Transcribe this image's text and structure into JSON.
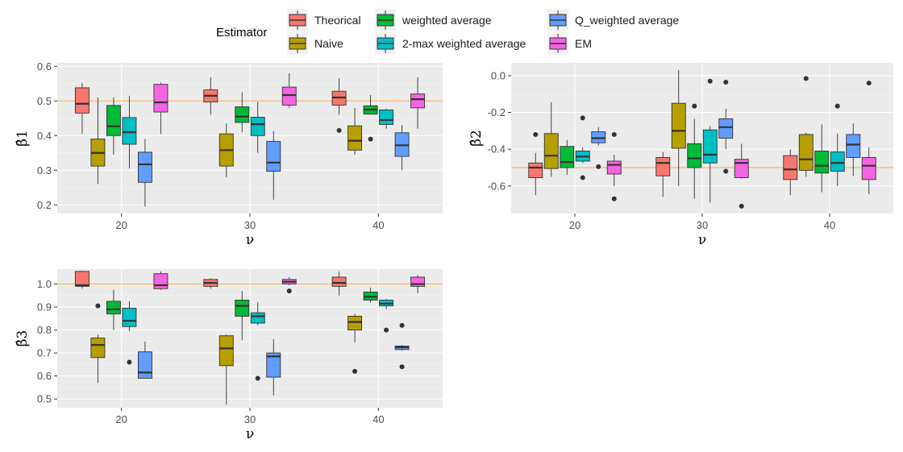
{
  "legend": {
    "title": "Estimator",
    "items": [
      {
        "label": "Theorical",
        "color": "#F8766D"
      },
      {
        "label": "Naive",
        "color": "#B79F00"
      },
      {
        "label": "weighted average",
        "color": "#00BA38"
      },
      {
        "label": "2-max weighted average",
        "color": "#00BFC4"
      },
      {
        "label": "Q_weighted average",
        "color": "#619CFF"
      },
      {
        "label": "EM",
        "color": "#F564E3"
      }
    ]
  },
  "reference_line_color": "#F5B041",
  "chart_data": [
    {
      "type": "box",
      "id": "beta1",
      "ylabel": "β̂1",
      "xlabel": "ν",
      "categories": [
        "20",
        "30",
        "40"
      ],
      "ylim": [
        0.175,
        0.61
      ],
      "yticks": [
        0.2,
        0.3,
        0.4,
        0.5,
        0.6
      ],
      "reference_y": 0.5,
      "groups": [
        {
          "category": "20",
          "boxes": [
            {
              "series": "Theorical",
              "whislo": 0.405,
              "q1": 0.465,
              "med": 0.492,
              "q3": 0.538,
              "whishi": 0.552,
              "outliers": []
            },
            {
              "series": "Naive",
              "whislo": 0.26,
              "q1": 0.312,
              "med": 0.35,
              "q3": 0.39,
              "whishi": 0.51,
              "outliers": []
            },
            {
              "series": "weighted average",
              "whislo": 0.345,
              "q1": 0.4,
              "med": 0.427,
              "q3": 0.487,
              "whishi": 0.51,
              "outliers": []
            },
            {
              "series": "2-max weighted average",
              "whislo": 0.305,
              "q1": 0.375,
              "med": 0.41,
              "q3": 0.452,
              "whishi": 0.515,
              "outliers": []
            },
            {
              "series": "Q_weighted average",
              "whislo": 0.195,
              "q1": 0.265,
              "med": 0.317,
              "q3": 0.352,
              "whishi": 0.39,
              "outliers": []
            },
            {
              "series": "EM",
              "whislo": 0.405,
              "q1": 0.468,
              "med": 0.496,
              "q3": 0.548,
              "whishi": 0.553,
              "outliers": []
            }
          ]
        },
        {
          "category": "30",
          "boxes": [
            {
              "series": "Theorical",
              "whislo": 0.46,
              "q1": 0.497,
              "med": 0.515,
              "q3": 0.532,
              "whishi": 0.568,
              "outliers": []
            },
            {
              "series": "Naive",
              "whislo": 0.28,
              "q1": 0.312,
              "med": 0.358,
              "q3": 0.405,
              "whishi": 0.435,
              "outliers": []
            },
            {
              "series": "weighted average",
              "whislo": 0.41,
              "q1": 0.438,
              "med": 0.455,
              "q3": 0.483,
              "whishi": 0.525,
              "outliers": []
            },
            {
              "series": "2-max weighted average",
              "whislo": 0.35,
              "q1": 0.4,
              "med": 0.433,
              "q3": 0.453,
              "whishi": 0.497,
              "outliers": []
            },
            {
              "series": "Q_weighted average",
              "whislo": 0.215,
              "q1": 0.297,
              "med": 0.322,
              "q3": 0.383,
              "whishi": 0.413,
              "outliers": []
            },
            {
              "series": "EM",
              "whislo": 0.48,
              "q1": 0.488,
              "med": 0.517,
              "q3": 0.54,
              "whishi": 0.58,
              "outliers": []
            }
          ]
        },
        {
          "category": "40",
          "boxes": [
            {
              "series": "Theorical",
              "whislo": 0.46,
              "q1": 0.488,
              "med": 0.51,
              "q3": 0.528,
              "whishi": 0.565,
              "outliers": [
                0.415
              ]
            },
            {
              "series": "Naive",
              "whislo": 0.345,
              "q1": 0.358,
              "med": 0.385,
              "q3": 0.428,
              "whishi": 0.48,
              "outliers": []
            },
            {
              "series": "weighted average",
              "whislo": 0.46,
              "q1": 0.462,
              "med": 0.475,
              "q3": 0.486,
              "whishi": 0.517,
              "outliers": [
                0.39
              ]
            },
            {
              "series": "2-max weighted average",
              "whislo": 0.42,
              "q1": 0.432,
              "med": 0.445,
              "q3": 0.474,
              "whishi": 0.477,
              "outliers": []
            },
            {
              "series": "Q_weighted average",
              "whislo": 0.3,
              "q1": 0.34,
              "med": 0.372,
              "q3": 0.408,
              "whishi": 0.43,
              "outliers": []
            },
            {
              "series": "EM",
              "whislo": 0.42,
              "q1": 0.48,
              "med": 0.505,
              "q3": 0.52,
              "whishi": 0.568,
              "outliers": []
            }
          ]
        }
      ]
    },
    {
      "type": "box",
      "id": "beta2",
      "ylabel": "β̂2",
      "xlabel": "ν",
      "categories": [
        "20",
        "30",
        "40"
      ],
      "ylim": [
        -0.75,
        0.07
      ],
      "yticks": [
        0.0,
        -0.2,
        -0.4,
        -0.6
      ],
      "reference_y": -0.5,
      "groups": [
        {
          "category": "20",
          "boxes": [
            {
              "series": "Theorical",
              "whislo": -0.65,
              "q1": -0.555,
              "med": -0.5,
              "q3": -0.475,
              "whishi": -0.42,
              "outliers": [
                -0.32
              ]
            },
            {
              "series": "Naive",
              "whislo": -0.55,
              "q1": -0.505,
              "med": -0.435,
              "q3": -0.315,
              "whishi": -0.145,
              "outliers": []
            },
            {
              "series": "weighted average",
              "whislo": -0.54,
              "q1": -0.5,
              "med": -0.47,
              "q3": -0.385,
              "whishi": -0.35,
              "outliers": []
            },
            {
              "series": "2-max weighted average",
              "whislo": -0.475,
              "q1": -0.465,
              "med": -0.44,
              "q3": -0.41,
              "whishi": -0.39,
              "outliers": [
                -0.555,
                -0.23
              ]
            },
            {
              "series": "Q_weighted average",
              "whislo": -0.38,
              "q1": -0.365,
              "med": -0.34,
              "q3": -0.305,
              "whishi": -0.28,
              "outliers": [
                -0.495
              ]
            },
            {
              "series": "EM",
              "whislo": -0.6,
              "q1": -0.535,
              "med": -0.485,
              "q3": -0.465,
              "whishi": -0.43,
              "outliers": [
                -0.32,
                -0.67
              ]
            }
          ]
        },
        {
          "category": "30",
          "boxes": [
            {
              "series": "Theorical",
              "whislo": -0.66,
              "q1": -0.545,
              "med": -0.475,
              "q3": -0.445,
              "whishi": -0.415,
              "outliers": []
            },
            {
              "series": "Naive",
              "whislo": -0.6,
              "q1": -0.395,
              "med": -0.3,
              "q3": -0.15,
              "whishi": 0.03,
              "outliers": []
            },
            {
              "series": "weighted average",
              "whislo": -0.67,
              "q1": -0.5,
              "med": -0.45,
              "q3": -0.37,
              "whishi": -0.235,
              "outliers": [
                -0.165
              ]
            },
            {
              "series": "2-max weighted average",
              "whislo": -0.69,
              "q1": -0.475,
              "med": -0.43,
              "q3": -0.295,
              "whishi": -0.275,
              "outliers": [
                -0.03
              ]
            },
            {
              "series": "Q_weighted average",
              "whislo": -0.4,
              "q1": -0.34,
              "med": -0.28,
              "q3": -0.235,
              "whishi": -0.18,
              "outliers": [
                -0.035,
                -0.52
              ]
            },
            {
              "series": "EM",
              "whislo": -0.56,
              "q1": -0.555,
              "med": -0.475,
              "q3": -0.455,
              "whishi": -0.37,
              "outliers": [
                -0.71
              ]
            }
          ]
        },
        {
          "category": "40",
          "boxes": [
            {
              "series": "Theorical",
              "whislo": -0.65,
              "q1": -0.565,
              "med": -0.51,
              "q3": -0.435,
              "whishi": -0.4,
              "outliers": []
            },
            {
              "series": "Naive",
              "whislo": -0.55,
              "q1": -0.515,
              "med": -0.455,
              "q3": -0.32,
              "whishi": -0.31,
              "outliers": [
                -0.015
              ]
            },
            {
              "series": "weighted average",
              "whislo": -0.635,
              "q1": -0.53,
              "med": -0.49,
              "q3": -0.41,
              "whishi": -0.265,
              "outliers": []
            },
            {
              "series": "2-max weighted average",
              "whislo": -0.6,
              "q1": -0.52,
              "med": -0.475,
              "q3": -0.415,
              "whishi": -0.315,
              "outliers": [
                -0.165
              ]
            },
            {
              "series": "Q_weighted average",
              "whislo": -0.545,
              "q1": -0.445,
              "med": -0.375,
              "q3": -0.32,
              "whishi": -0.26,
              "outliers": []
            },
            {
              "series": "EM",
              "whislo": -0.645,
              "q1": -0.565,
              "med": -0.49,
              "q3": -0.445,
              "whishi": -0.39,
              "outliers": [
                -0.04
              ]
            }
          ]
        }
      ]
    },
    {
      "type": "box",
      "id": "beta3",
      "ylabel": "β̂3",
      "xlabel": "ν",
      "categories": [
        "20",
        "30",
        "40"
      ],
      "ylim": [
        0.462,
        1.065
      ],
      "yticks": [
        0.5,
        0.6,
        0.7,
        0.8,
        0.9,
        1.0
      ],
      "reference_y": 1.0,
      "groups": [
        {
          "category": "20",
          "boxes": [
            {
              "series": "Theorical",
              "whislo": 0.98,
              "q1": 0.99,
              "med": 0.995,
              "q3": 1.055,
              "whishi": 1.058,
              "outliers": []
            },
            {
              "series": "Naive",
              "whislo": 0.57,
              "q1": 0.68,
              "med": 0.735,
              "q3": 0.765,
              "whishi": 0.78,
              "outliers": [
                0.905
              ]
            },
            {
              "series": "weighted average",
              "whislo": 0.8,
              "q1": 0.87,
              "med": 0.89,
              "q3": 0.925,
              "whishi": 0.975,
              "outliers": []
            },
            {
              "series": "2-max weighted average",
              "whislo": 0.795,
              "q1": 0.815,
              "med": 0.84,
              "q3": 0.895,
              "whishi": 0.925,
              "outliers": [
                0.66
              ]
            },
            {
              "series": "Q_weighted average",
              "whislo": 0.59,
              "q1": 0.59,
              "med": 0.615,
              "q3": 0.705,
              "whishi": 0.75,
              "outliers": []
            },
            {
              "series": "EM",
              "whislo": 0.975,
              "q1": 0.98,
              "med": 0.995,
              "q3": 1.045,
              "whishi": 1.055,
              "outliers": []
            }
          ]
        },
        {
          "category": "30",
          "boxes": [
            {
              "series": "Theorical",
              "whislo": 0.98,
              "q1": 0.99,
              "med": 1.005,
              "q3": 1.02,
              "whishi": 1.025,
              "outliers": []
            },
            {
              "series": "Naive",
              "whislo": 0.475,
              "q1": 0.645,
              "med": 0.72,
              "q3": 0.775,
              "whishi": 0.78,
              "outliers": []
            },
            {
              "series": "weighted average",
              "whislo": 0.755,
              "q1": 0.86,
              "med": 0.905,
              "q3": 0.93,
              "whishi": 0.97,
              "outliers": []
            },
            {
              "series": "2-max weighted average",
              "whislo": 0.82,
              "q1": 0.83,
              "med": 0.86,
              "q3": 0.875,
              "whishi": 0.92,
              "outliers": [
                0.59
              ]
            },
            {
              "series": "Q_weighted average",
              "whislo": 0.515,
              "q1": 0.595,
              "med": 0.685,
              "q3": 0.7,
              "whishi": 0.76,
              "outliers": []
            },
            {
              "series": "EM",
              "whislo": 0.995,
              "q1": 1.0,
              "med": 1.01,
              "q3": 1.02,
              "whishi": 1.03,
              "outliers": [
                0.97
              ]
            }
          ]
        },
        {
          "category": "40",
          "boxes": [
            {
              "series": "Theorical",
              "whislo": 0.95,
              "q1": 0.99,
              "med": 1.005,
              "q3": 1.03,
              "whishi": 1.055,
              "outliers": []
            },
            {
              "series": "Naive",
              "whislo": 0.745,
              "q1": 0.8,
              "med": 0.835,
              "q3": 0.86,
              "whishi": 0.87,
              "outliers": [
                0.62
              ]
            },
            {
              "series": "weighted average",
              "whislo": 0.92,
              "q1": 0.93,
              "med": 0.945,
              "q3": 0.965,
              "whishi": 0.985,
              "outliers": []
            },
            {
              "series": "2-max weighted average",
              "whislo": 0.89,
              "q1": 0.905,
              "med": 0.915,
              "q3": 0.93,
              "whishi": 0.935,
              "outliers": [
                0.8
              ]
            },
            {
              "series": "Q_weighted average",
              "whislo": 0.71,
              "q1": 0.715,
              "med": 0.725,
              "q3": 0.73,
              "whishi": 0.735,
              "outliers": [
                0.64,
                0.82
              ]
            },
            {
              "series": "EM",
              "whislo": 0.96,
              "q1": 0.99,
              "med": 1.0,
              "q3": 1.03,
              "whishi": 1.04,
              "outliers": []
            }
          ]
        }
      ]
    }
  ]
}
